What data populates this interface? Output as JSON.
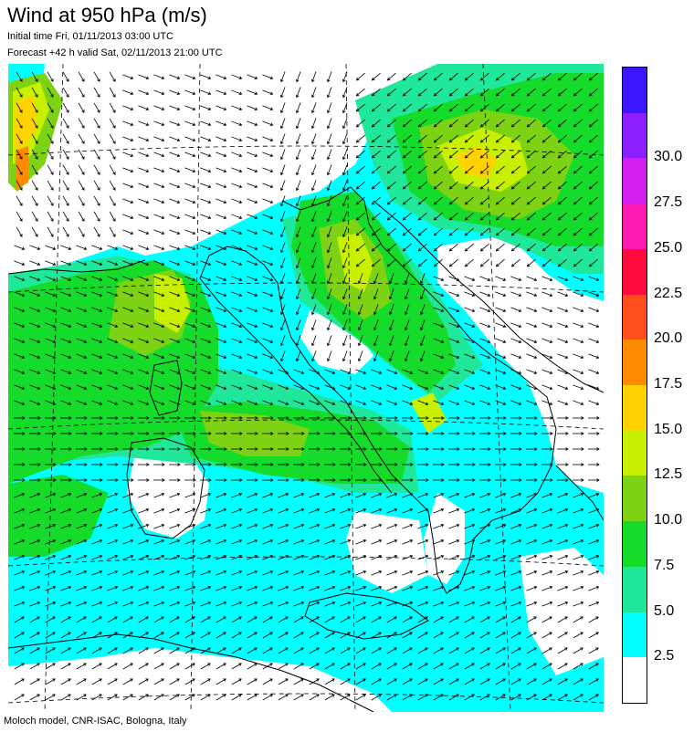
{
  "header": {
    "title": "Wind at 950 hPa (m/s)",
    "initial_time": "Initial time  Fri, 01/11/2013 03:00 UTC",
    "forecast": "Forecast +42 h valid  Sat, 02/11/2013 21:00 UTC"
  },
  "footer": "Moloch model, CNR-ISAC, Bologna, Italy",
  "legend": {
    "levels": [
      {
        "label": "",
        "color": "#ffffff"
      },
      {
        "label": "2.5",
        "color": "#00ffff"
      },
      {
        "label": "5.0",
        "color": "#20e89a"
      },
      {
        "label": "7.5",
        "color": "#15dc2a"
      },
      {
        "label": "10.0",
        "color": "#7ed214"
      },
      {
        "label": "12.5",
        "color": "#c8f000"
      },
      {
        "label": "15.0",
        "color": "#ffd200"
      },
      {
        "label": "17.5",
        "color": "#ff8c00"
      },
      {
        "label": "20.0",
        "color": "#ff4e1a"
      },
      {
        "label": "22.5",
        "color": "#ff0a3c"
      },
      {
        "label": "25.0",
        "color": "#ff1ab4"
      },
      {
        "label": "27.5",
        "color": "#d21ef0"
      },
      {
        "label": "30.0",
        "color": "#8c1eff"
      },
      {
        "label": "",
        "color": "#3c14ff"
      }
    ]
  },
  "map": {
    "region": "Italy and central Mediterranean",
    "field": "wind speed at 950 hPa with direction arrows"
  }
}
